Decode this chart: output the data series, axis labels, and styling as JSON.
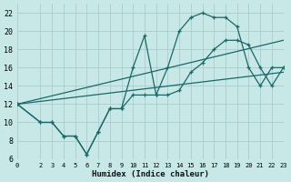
{
  "xlabel": "Humidex (Indice chaleur)",
  "bg_color": "#c8e8e8",
  "grid_color": "#aacccc",
  "line_color": "#1a6868",
  "ylim": [
    6,
    23
  ],
  "xlim": [
    0,
    23
  ],
  "yticks": [
    6,
    8,
    10,
    12,
    14,
    16,
    18,
    20,
    22
  ],
  "xticks": [
    0,
    2,
    3,
    4,
    5,
    6,
    7,
    8,
    9,
    10,
    11,
    12,
    13,
    14,
    15,
    16,
    17,
    18,
    19,
    20,
    21,
    22,
    23
  ],
  "series": [
    {
      "x": [
        0,
        2,
        3,
        4,
        5,
        6,
        7,
        8,
        9,
        10,
        11,
        12,
        13,
        14,
        15,
        16,
        17,
        18,
        19,
        20,
        21,
        22,
        23
      ],
      "y": [
        12,
        10,
        10,
        8.5,
        8.5,
        6.5,
        9.0,
        11.5,
        11.5,
        16.0,
        19.5,
        13.0,
        16.0,
        20.0,
        21.5,
        22.0,
        21.5,
        21.5,
        20.5,
        16.0,
        14.0,
        16.0,
        16.0
      ],
      "marker": true
    },
    {
      "x": [
        0,
        2,
        3,
        4,
        5,
        6,
        7,
        8,
        9,
        10,
        11,
        12,
        13,
        14,
        15,
        16,
        17,
        18,
        19,
        20,
        21,
        22,
        23
      ],
      "y": [
        12,
        10,
        10,
        8.5,
        8.5,
        6.5,
        9.0,
        11.5,
        11.5,
        13.0,
        13.0,
        13.0,
        13.0,
        13.5,
        15.5,
        16.5,
        18.0,
        19.0,
        19.0,
        18.5,
        16.0,
        14.0,
        16.0
      ],
      "marker": true
    },
    {
      "x": [
        0,
        23
      ],
      "y": [
        12.0,
        19.0
      ],
      "marker": false
    },
    {
      "x": [
        0,
        23
      ],
      "y": [
        12.0,
        15.5
      ],
      "marker": false
    }
  ]
}
